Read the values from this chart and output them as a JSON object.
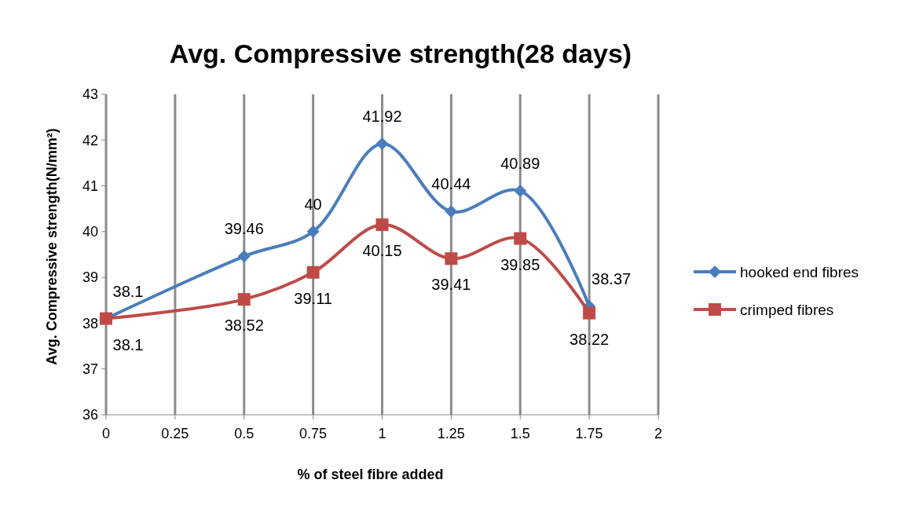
{
  "chart_data": {
    "type": "line",
    "title": "Avg. Compressive strength(28 days)",
    "xlabel": "% of steel fibre added",
    "ylabel": "Avg. Compressive strength(N/mm²)",
    "x": [
      0,
      0.5,
      0.75,
      1,
      1.25,
      1.5,
      1.75
    ],
    "series": [
      {
        "name": "hooked end fibres",
        "color": "#4a7ebb",
        "marker": "diamond",
        "values": [
          38.1,
          39.46,
          40,
          41.92,
          40.44,
          40.89,
          38.37
        ]
      },
      {
        "name": "crimped fibres",
        "color": "#be4b48",
        "marker": "square",
        "values": [
          38.1,
          38.52,
          39.11,
          40.15,
          39.41,
          39.85,
          38.22
        ]
      }
    ],
    "xlim": [
      0,
      2
    ],
    "xticks": [
      0,
      0.25,
      0.5,
      0.75,
      1,
      1.25,
      1.5,
      1.75,
      2
    ],
    "ylim": [
      36,
      43
    ],
    "yticks": [
      36,
      37,
      38,
      39,
      40,
      41,
      42,
      43
    ],
    "grid": "x",
    "legend": "right",
    "data_labels": true
  }
}
